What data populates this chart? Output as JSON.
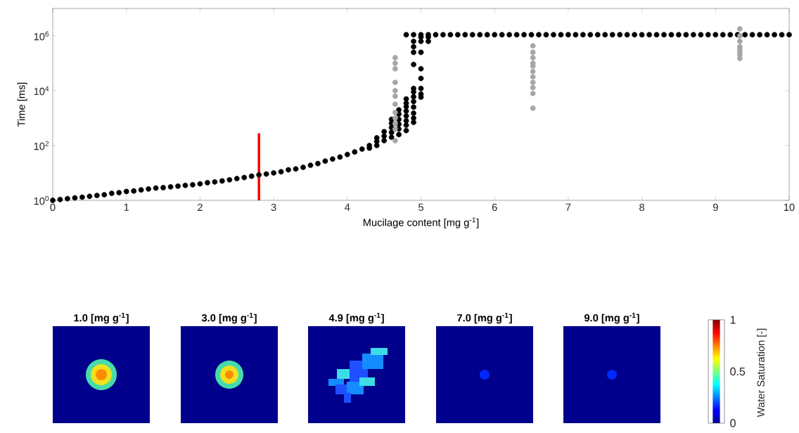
{
  "chart_data": [
    {
      "type": "scatter",
      "xlabel": "Mucilage content [mg g$^{-1}$]",
      "ylabel": "Time [ms]",
      "xlim": [
        0,
        10
      ],
      "ylim": [
        1,
        10000000
      ],
      "log": "y",
      "xticks": [
        0,
        1,
        2,
        3,
        4,
        5,
        6,
        7,
        8,
        9,
        10
      ],
      "yticks": [
        {
          "value": 1,
          "label": "10$^{0}$"
        },
        {
          "value": 100,
          "label": "10$^{2}$"
        },
        {
          "value": 10000,
          "label": "10$^{4}$"
        },
        {
          "value": 1000000,
          "label": "10$^{6}$"
        }
      ],
      "series": [
        {
          "color": "#000000",
          "marker": "circle",
          "x": [
            0,
            0.1,
            0.2,
            0.3,
            0.4,
            0.5,
            0.6,
            0.7,
            0.8,
            0.9,
            1.0,
            1.1,
            1.2,
            1.3,
            1.4,
            1.5,
            1.6,
            1.7,
            1.8,
            1.9,
            2.0,
            2.1,
            2.2,
            2.3,
            2.4,
            2.5,
            2.6,
            2.7,
            2.8,
            2.9,
            3.0,
            3.1,
            3.2,
            3.3,
            3.4,
            3.5,
            3.6,
            3.7,
            3.8,
            3.9,
            4.0,
            4.1,
            4.2,
            4.3,
            4.3,
            4.4,
            4.4,
            4.4,
            4.5,
            4.5,
            4.5,
            4.6,
            4.6,
            4.6,
            4.6,
            4.6,
            4.7,
            4.7,
            4.7,
            4.7,
            4.7,
            4.7,
            4.8,
            4.8,
            4.8,
            4.8,
            4.8,
            4.8,
            4.8,
            4.8,
            4.8,
            4.9,
            4.9,
            4.9,
            4.9,
            4.9,
            4.9,
            4.9,
            4.9,
            4.9,
            4.9,
            4.9,
            4.9,
            4.9,
            5.0,
            5.0,
            5.0,
            5.0,
            5.0,
            5.0,
            5.0,
            5.0,
            5.0,
            5.1,
            5.1,
            5.1,
            5.2,
            5.3,
            5.4,
            5.5,
            5.6,
            5.7,
            5.8,
            5.9,
            6.0,
            6.1,
            6.2,
            6.3,
            6.4,
            6.5,
            6.6,
            6.7,
            6.8,
            6.9,
            7.0,
            7.1,
            7.2,
            7.3,
            7.4,
            7.5,
            7.6,
            7.7,
            7.8,
            7.9,
            8.0,
            8.1,
            8.2,
            8.3,
            8.4,
            8.5,
            8.6,
            8.7,
            8.8,
            8.9,
            9.0,
            9.1,
            9.2,
            9.3,
            9.4,
            9.5,
            9.6,
            9.7,
            9.8,
            9.9,
            10.0
          ],
          "values": [
            1,
            1.07,
            1.15,
            1.23,
            1.3,
            1.4,
            1.5,
            1.6,
            1.8,
            1.9,
            2.1,
            2.2,
            2.4,
            2.6,
            2.8,
            2.9,
            3.1,
            3.3,
            3.5,
            3.7,
            4,
            4.4,
            4.7,
            5.1,
            5.6,
            6.2,
            6.8,
            7.6,
            8.5,
            9.1,
            10,
            11,
            13,
            14,
            16,
            19,
            22,
            27,
            32,
            38,
            47,
            58,
            74,
            100,
            80,
            140,
            100,
            190,
            220,
            150,
            320,
            200,
            300,
            450,
            650,
            900,
            250,
            400,
            600,
            900,
            1400,
            2000,
            350,
            550,
            800,
            1200,
            1800,
            2600,
            3500,
            5000,
            1100000,
            700,
            1000,
            1500,
            2500,
            4000,
            6000,
            9000,
            12000,
            90000,
            250000,
            400000,
            630000,
            1100000,
            5800,
            7500,
            12000,
            28000,
            63000,
            250000,
            630000,
            900000,
            1100000,
            630000,
            900000,
            1100000,
            1100000,
            1100000,
            1100000,
            1100000,
            1100000,
            1100000,
            1100000,
            1100000,
            1100000,
            1100000,
            1100000,
            1100000,
            1100000,
            1100000,
            1100000,
            1100000,
            1100000,
            1100000,
            1100000,
            1100000,
            1100000,
            1100000,
            1100000,
            1100000,
            1100000,
            1100000,
            1100000,
            1100000,
            1100000,
            1100000,
            1100000,
            1100000,
            1100000,
            1100000,
            1100000,
            1100000,
            1100000,
            1100000,
            1100000,
            1100000,
            1100000,
            1100000,
            1100000,
            1100000,
            1100000,
            1100000,
            1100000,
            1100000,
            1100000
          ]
        },
        {
          "color": "#a6a6a6",
          "marker": "circle",
          "x": [
            4.65,
            4.65,
            4.65,
            4.65,
            4.65,
            4.65,
            4.65,
            4.65,
            4.65,
            4.65,
            4.65,
            4.65,
            6.52,
            6.52,
            6.52,
            6.52,
            6.52,
            6.52,
            6.52,
            6.52,
            6.52,
            6.52,
            6.52,
            9.33,
            9.33,
            9.33,
            9.33,
            9.33,
            9.33,
            9.33,
            9.33
          ],
          "values": [
            150,
            400,
            630,
            1000,
            1600,
            3200,
            6300,
            10000,
            20000,
            63000,
            100000,
            160000,
            2300,
            7900,
            13000,
            20000,
            32000,
            50000,
            79000,
            100000,
            160000,
            250000,
            430000,
            150000,
            200000,
            250000,
            320000,
            400000,
            630000,
            1000000,
            1800000
          ]
        },
        {
          "type": "line",
          "color": "#ff0000",
          "marker": "none",
          "x": [
            2.8,
            2.8
          ],
          "values": [
            1,
            280
          ]
        }
      ]
    },
    {
      "type": "other",
      "annotations": [
        "1.0 [mg g$^{-1}$]",
        "3.0 [mg g$^{-1}$]",
        "4.9 [mg g$^{-1}$]",
        "7.0 [mg g$^{-1}$]",
        "9.0 [mg g$^{-1}$]",
        "1",
        "0.5",
        "0"
      ],
      "clabel": "Water Saturation [-]"
    }
  ]
}
